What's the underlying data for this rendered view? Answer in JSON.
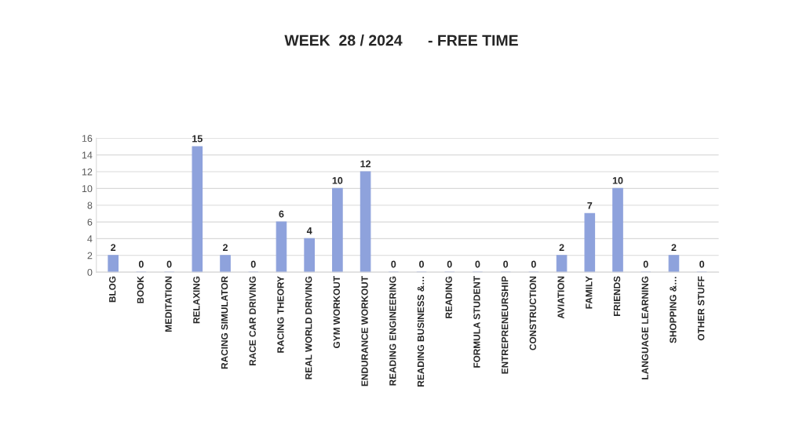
{
  "chart_data": {
    "type": "bar",
    "title": "WEEK  28 / 2024      - FREE TIME",
    "categories": [
      "BLOG",
      "BOOK",
      "MEDITATION",
      "RELAXING",
      "RACING SIMULATOR",
      "RACE CAR DRIVING",
      "RACING THEORY",
      "REAL WORLD DRIVING",
      "GYM WORKOUT",
      "ENDURANCE WORKOUT",
      "READING ENGINEERING",
      "READING BUSINESS &…",
      "READING",
      "FORMULA STUDENT",
      "ENTREPRENEURSHIP",
      "CONSTRUCTION",
      "AVIATION",
      "FAMILY",
      "FRIENDS",
      "LANGUAGE LEARNING",
      "SHOPPING &…",
      "OTHER STUFF"
    ],
    "values": [
      2,
      0,
      0,
      15,
      2,
      0,
      6,
      4,
      10,
      12,
      0,
      0,
      0,
      0,
      0,
      0,
      2,
      7,
      10,
      0,
      2,
      0
    ],
    "color": "#8ea2dc",
    "ylim": [
      0,
      16
    ],
    "yticks": [
      0,
      2,
      4,
      6,
      8,
      10,
      12,
      14,
      16
    ],
    "grid": "y",
    "data_labels": true
  }
}
